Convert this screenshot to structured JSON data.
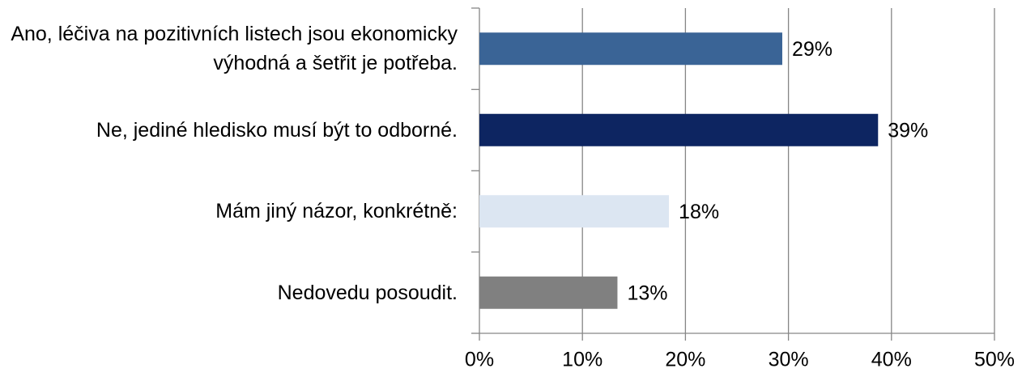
{
  "chart_data": {
    "type": "bar",
    "orientation": "horizontal",
    "categories": [
      "Ano, léčiva na pozitivních listech jsou ekonomicky výhodná a šetřit je potřeba.",
      "Ne, jediné hledisko musí být to odborné.",
      "Mám jiný názor, konkrétně:",
      "Nedovedu posoudit."
    ],
    "values": [
      29.4,
      38.7,
      18.4,
      13.4
    ],
    "value_labels": [
      "29%",
      "39%",
      "18%",
      "13%"
    ],
    "colors": [
      "#3a6496",
      "#0d2561",
      "#dce6f2",
      "#808080"
    ],
    "xlim": [
      0,
      50
    ],
    "xticks": [
      {
        "value": 0,
        "label": "0%"
      },
      {
        "value": 10,
        "label": "10%"
      },
      {
        "value": 20,
        "label": "20%"
      },
      {
        "value": 30,
        "label": "30%"
      },
      {
        "value": 40,
        "label": "40%"
      },
      {
        "value": 50,
        "label": "50%"
      }
    ],
    "grid": true
  }
}
